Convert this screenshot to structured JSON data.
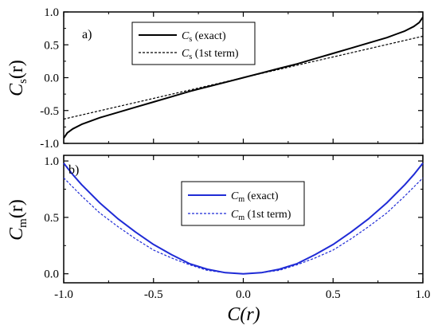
{
  "chart_data": [
    {
      "type": "line",
      "panel_label": "a)",
      "ylabel_main": "C",
      "ylabel_sub": "s",
      "ylabel_arg": "(r)",
      "xlim": [
        -1.0,
        1.0
      ],
      "ylim": [
        -1.0,
        1.0
      ],
      "x_ticks": [
        "-1.0",
        "-0.5",
        "0.0",
        "0.5",
        "1.0"
      ],
      "y_ticks": [
        {
          "value": -1.0,
          "label": "-1.0"
        },
        {
          "value": -0.5,
          "label": "-0.5"
        },
        {
          "value": 0.0,
          "label": "0.0"
        },
        {
          "value": 0.5,
          "label": "0.5"
        },
        {
          "value": 1.0,
          "label": "1.0"
        }
      ],
      "legend": {
        "placement": "top-center"
      },
      "series": [
        {
          "name_main": "C",
          "name_sub": "s",
          "name_rest": " (exact)",
          "style": "solid",
          "color": "#000000",
          "x": [
            -1.0,
            -0.98,
            -0.95,
            -0.9,
            -0.85,
            -0.8,
            -0.7,
            -0.6,
            -0.5,
            -0.4,
            -0.3,
            -0.2,
            -0.1,
            0.0,
            0.1,
            0.2,
            0.3,
            0.4,
            0.5,
            0.6,
            0.7,
            0.8,
            0.85,
            0.9,
            0.95,
            0.98,
            1.0
          ],
          "y": [
            -0.92,
            -0.84,
            -0.78,
            -0.71,
            -0.66,
            -0.61,
            -0.53,
            -0.45,
            -0.37,
            -0.29,
            -0.21,
            -0.14,
            -0.07,
            0.0,
            0.07,
            0.14,
            0.21,
            0.29,
            0.37,
            0.45,
            0.53,
            0.61,
            0.66,
            0.71,
            0.78,
            0.84,
            0.92
          ]
        },
        {
          "name_main": "C",
          "name_sub": "s",
          "name_rest": " (1st term)",
          "style": "dashed",
          "color": "#000000",
          "x": [
            -1.0,
            1.0
          ],
          "y": [
            -0.63,
            0.63
          ]
        }
      ]
    },
    {
      "type": "line",
      "panel_label": "b)",
      "ylabel_main": "C",
      "ylabel_sub": "m",
      "ylabel_arg": "(r)",
      "xlabel": "C(r)",
      "xlim": [
        -1.0,
        1.0
      ],
      "ylim": [
        -0.08,
        1.05
      ],
      "x_ticks": [
        "-1.0",
        "-0.5",
        "0.0",
        "0.5",
        "1.0"
      ],
      "y_ticks": [
        {
          "value": 0.0,
          "label": "0.0"
        },
        {
          "value": 0.5,
          "label": "0.5"
        },
        {
          "value": 1.0,
          "label": "1.0"
        }
      ],
      "legend": {
        "placement": "center-right"
      },
      "series": [
        {
          "name_main": "C",
          "name_sub": "m",
          "name_rest": " (exact)",
          "style": "solid",
          "color": "#1f2bd6",
          "x": [
            -1.0,
            -0.95,
            -0.9,
            -0.8,
            -0.7,
            -0.6,
            -0.5,
            -0.4,
            -0.3,
            -0.2,
            -0.1,
            0.0,
            0.1,
            0.2,
            0.3,
            0.4,
            0.5,
            0.6,
            0.7,
            0.8,
            0.9,
            0.95,
            1.0
          ],
          "y": [
            0.98,
            0.88,
            0.79,
            0.63,
            0.49,
            0.37,
            0.26,
            0.17,
            0.09,
            0.04,
            0.01,
            0.0,
            0.01,
            0.04,
            0.09,
            0.17,
            0.26,
            0.37,
            0.49,
            0.63,
            0.79,
            0.88,
            0.98
          ]
        },
        {
          "name_main": "C",
          "name_sub": "m",
          "name_rest": " (1st term)",
          "style": "dashed",
          "color": "#1f2bd6",
          "x": [
            -1.0,
            -0.9,
            -0.8,
            -0.7,
            -0.6,
            -0.5,
            -0.4,
            -0.3,
            -0.2,
            -0.1,
            0.0,
            0.1,
            0.2,
            0.3,
            0.4,
            0.5,
            0.6,
            0.7,
            0.8,
            0.9,
            1.0
          ],
          "y": [
            0.85,
            0.69,
            0.54,
            0.42,
            0.31,
            0.21,
            0.14,
            0.08,
            0.03,
            0.01,
            0.0,
            0.01,
            0.03,
            0.08,
            0.14,
            0.21,
            0.31,
            0.42,
            0.54,
            0.69,
            0.85
          ]
        }
      ]
    }
  ]
}
